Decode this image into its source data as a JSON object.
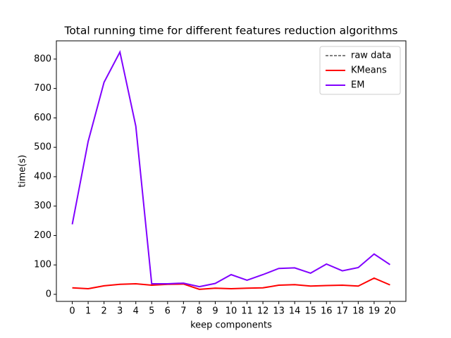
{
  "chart_data": {
    "type": "line",
    "title": "Total running time for different features reduction algorithms",
    "x_label": "keep components",
    "y_label": "time(s)",
    "x": [
      0,
      1,
      2,
      3,
      4,
      5,
      6,
      7,
      8,
      9,
      10,
      11,
      12,
      13,
      14,
      15,
      16,
      17,
      18,
      19,
      20
    ],
    "series": [
      {
        "name": "raw data",
        "color": "#000000",
        "dashed": true,
        "values": [
          null,
          null,
          null,
          null,
          null,
          null,
          null,
          null,
          null,
          null,
          null,
          null,
          null,
          null,
          null,
          null,
          null,
          null,
          null,
          null,
          null
        ]
      },
      {
        "name": "KMeans",
        "color": "#ff0000",
        "values": [
          22,
          19,
          29,
          34,
          36,
          31,
          34,
          35,
          17,
          21,
          19,
          21,
          22,
          31,
          33,
          28,
          30,
          31,
          28,
          55,
          32
        ]
      },
      {
        "name": "EM",
        "color": "#8000ff",
        "values": [
          238,
          520,
          721,
          824,
          572,
          36,
          36,
          38,
          26,
          37,
          67,
          48,
          67,
          88,
          90,
          72,
          103,
          80,
          91,
          137,
          101
        ]
      }
    ],
    "xlim": [
      -1,
      21
    ],
    "xticks": [
      0,
      1,
      2,
      3,
      4,
      5,
      6,
      7,
      8,
      9,
      10,
      11,
      12,
      13,
      14,
      15,
      16,
      17,
      18,
      19,
      20
    ],
    "ylim": [
      -24,
      862
    ],
    "yticks": [
      0,
      100,
      200,
      300,
      400,
      500,
      600,
      700,
      800
    ],
    "legend": "upper right"
  }
}
